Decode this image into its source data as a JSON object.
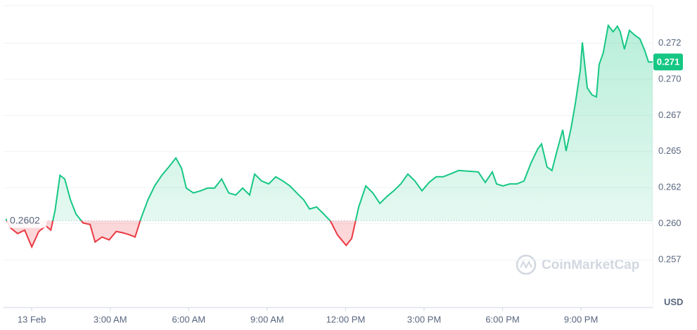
{
  "chart_data": {
    "type": "line",
    "x": [
      -0.99,
      -0.81,
      -0.54,
      -0.27,
      0,
      0.27,
      0.54,
      0.73,
      0.89,
      1.08,
      1.26,
      1.48,
      1.69,
      1.96,
      2.23,
      2.42,
      2.69,
      2.96,
      3.23,
      3.49,
      3.76,
      3.95,
      4.17,
      4.44,
      4.7,
      4.97,
      5.24,
      5.51,
      5.73,
      5.91,
      6.18,
      6.45,
      6.72,
      6.99,
      7.26,
      7.53,
      7.8,
      8.06,
      8.33,
      8.52,
      8.79,
      9.06,
      9.33,
      9.6,
      9.87,
      10.13,
      10.4,
      10.62,
      10.89,
      11.16,
      11.42,
      11.69,
      12.02,
      12.23,
      12.5,
      12.77,
      13.04,
      13.31,
      13.58,
      13.84,
      14.11,
      14.38,
      14.65,
      14.92,
      15.19,
      15.46,
      15.73,
      15.99,
      16.32,
      16.67,
      17.07,
      17.34,
      17.61,
      17.77,
      18.01,
      18.28,
      18.55,
      18.82,
      19.09,
      19.35,
      19.49,
      19.7,
      19.89,
      20.08,
      20.3,
      20.43,
      20.62,
      20.78,
      20.97,
      21.05,
      21.24,
      21.42,
      21.59,
      21.69,
      21.85,
      22.04,
      22.23,
      22.39,
      22.5,
      22.66,
      22.85,
      23.06,
      23.25,
      23.44,
      23.58,
      23.74
    ],
    "series": [
      {
        "color": "#16c784",
        "below_color": "#ea3943",
        "values": [
          0.26034,
          0.25971,
          0.25932,
          0.25956,
          0.2584,
          0.25947,
          0.25985,
          0.25956,
          0.26092,
          0.26335,
          0.2631,
          0.26165,
          0.26068,
          0.26005,
          0.25995,
          0.25874,
          0.25908,
          0.25888,
          0.25947,
          0.25937,
          0.25922,
          0.25908,
          0.26034,
          0.26165,
          0.26262,
          0.26335,
          0.26393,
          0.26456,
          0.26383,
          0.26247,
          0.26213,
          0.26228,
          0.26247,
          0.26247,
          0.2631,
          0.26213,
          0.26199,
          0.26247,
          0.26199,
          0.26344,
          0.26296,
          0.26276,
          0.26325,
          0.26296,
          0.26262,
          0.26213,
          0.26165,
          0.26102,
          0.26116,
          0.26068,
          0.26019,
          0.25922,
          0.2585,
          0.25898,
          0.26116,
          0.26262,
          0.26213,
          0.26141,
          0.26189,
          0.26228,
          0.26276,
          0.26344,
          0.26296,
          0.26228,
          0.26286,
          0.26325,
          0.26325,
          0.26344,
          0.26369,
          0.26364,
          0.26359,
          0.26286,
          0.26359,
          0.26276,
          0.26262,
          0.26276,
          0.26276,
          0.26296,
          0.26422,
          0.26519,
          0.26553,
          0.26393,
          0.26369,
          0.26504,
          0.2665,
          0.26504,
          0.26664,
          0.26829,
          0.27062,
          0.27256,
          0.26941,
          0.26892,
          0.26878,
          0.27101,
          0.27183,
          0.27373,
          0.27329,
          0.27368,
          0.27329,
          0.27208,
          0.27339,
          0.27305,
          0.2728,
          0.27198,
          0.2712,
          0.2712
        ]
      }
    ],
    "xlim": [
      -1.08,
      23.74
    ],
    "xticks": [
      {
        "value": 0,
        "label": "13 Feb"
      },
      {
        "value": 3,
        "label": "3:00 AM"
      },
      {
        "value": 6,
        "label": "6:00 AM"
      },
      {
        "value": 9,
        "label": "9:00 AM"
      },
      {
        "value": 12,
        "label": "12:00 PM"
      },
      {
        "value": 15,
        "label": "3:00 PM"
      },
      {
        "value": 18,
        "label": "6:00 PM"
      },
      {
        "value": 21,
        "label": "9:00 PM"
      }
    ],
    "ylim": [
      0.2542,
      0.2751
    ],
    "yticks": [
      {
        "value": 0.2575,
        "label": "0.257"
      },
      {
        "value": 0.26,
        "label": "0.260"
      },
      {
        "value": 0.2625,
        "label": "0.262"
      },
      {
        "value": 0.265,
        "label": "0.265"
      },
      {
        "value": 0.2675,
        "label": "0.267"
      },
      {
        "value": 0.27,
        "label": "0.270"
      },
      {
        "value": 0.2725,
        "label": "0.272"
      }
    ],
    "baseline": 0.2602,
    "current_price": {
      "value": 0.2712,
      "label": "0.271"
    },
    "y_unit": "USD",
    "watermark": "CoinMarketCap",
    "grid": true
  }
}
